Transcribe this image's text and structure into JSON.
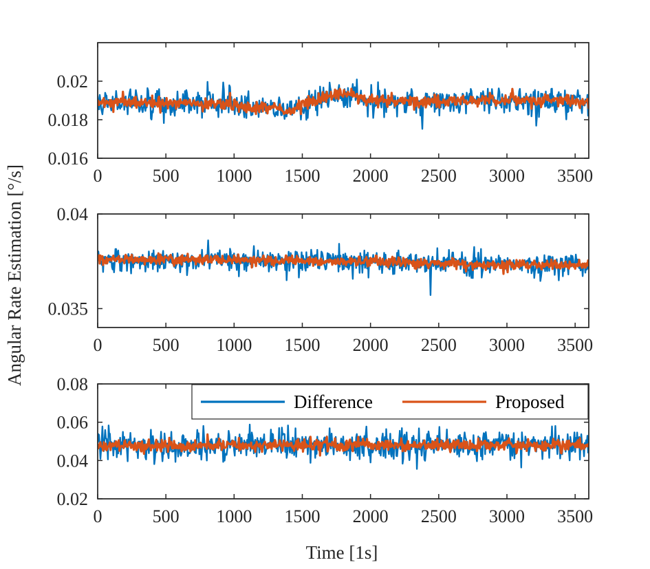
{
  "chart_data": [
    {
      "type": "line",
      "panel": "top",
      "xlim": [
        0,
        3600
      ],
      "ylim": [
        0.016,
        0.022
      ],
      "xticks": [
        "0",
        "500",
        "1000",
        "1500",
        "2000",
        "2500",
        "3000",
        "3500"
      ],
      "yticks": [
        "0.016",
        "0.018",
        "0.02"
      ],
      "series": [
        {
          "name": "Difference",
          "color": "#0072BD",
          "noise_amplitude": 0.0007,
          "trend": [
            [
              0,
              0.0189
            ],
            [
              300,
              0.0189
            ],
            [
              600,
              0.01885
            ],
            [
              1000,
              0.0188
            ],
            [
              1300,
              0.0186
            ],
            [
              1400,
              0.0184
            ],
            [
              1500,
              0.0188
            ],
            [
              1650,
              0.0191
            ],
            [
              1800,
              0.0194
            ],
            [
              2000,
              0.019
            ],
            [
              2500,
              0.0189
            ],
            [
              3000,
              0.019
            ],
            [
              3300,
              0.019
            ],
            [
              3600,
              0.0189
            ]
          ]
        },
        {
          "name": "Proposed",
          "color": "#D95319",
          "noise_amplitude": 0.0003,
          "trend": [
            [
              0,
              0.0189
            ],
            [
              300,
              0.0189
            ],
            [
              600,
              0.01885
            ],
            [
              1000,
              0.0188
            ],
            [
              1300,
              0.0186
            ],
            [
              1400,
              0.0184
            ],
            [
              1500,
              0.0188
            ],
            [
              1650,
              0.0191
            ],
            [
              1800,
              0.0194
            ],
            [
              2000,
              0.019
            ],
            [
              2500,
              0.0189
            ],
            [
              3000,
              0.019
            ],
            [
              3300,
              0.019
            ],
            [
              3600,
              0.0189
            ]
          ]
        }
      ]
    },
    {
      "type": "line",
      "panel": "middle",
      "xlim": [
        0,
        3600
      ],
      "ylim": [
        0.034,
        0.04
      ],
      "xticks": [
        "0",
        "500",
        "1000",
        "1500",
        "2000",
        "2500",
        "3000",
        "3500"
      ],
      "yticks": [
        "0.035",
        "0.04"
      ],
      "series": [
        {
          "name": "Difference",
          "color": "#0072BD",
          "noise_amplitude": 0.0006,
          "trend": [
            [
              0,
              0.0376
            ],
            [
              600,
              0.0376
            ],
            [
              1200,
              0.03755
            ],
            [
              1800,
              0.0375
            ],
            [
              2400,
              0.0374
            ],
            [
              3000,
              0.0373
            ],
            [
              3600,
              0.0373
            ]
          ]
        },
        {
          "name": "Proposed",
          "color": "#D95319",
          "noise_amplitude": 0.00025,
          "trend": [
            [
              0,
              0.0376
            ],
            [
              600,
              0.0376
            ],
            [
              1200,
              0.03755
            ],
            [
              1800,
              0.0375
            ],
            [
              2400,
              0.0374
            ],
            [
              3000,
              0.0373
            ],
            [
              3600,
              0.0373
            ]
          ]
        }
      ]
    },
    {
      "type": "line",
      "panel": "bottom",
      "xlim": [
        0,
        3600
      ],
      "ylim": [
        0.02,
        0.08
      ],
      "xticks": [
        "0",
        "500",
        "1000",
        "1500",
        "2000",
        "2500",
        "3000",
        "3500"
      ],
      "yticks": [
        "0.02",
        "0.04",
        "0.06",
        "0.08"
      ],
      "series": [
        {
          "name": "Difference",
          "color": "#0072BD",
          "noise_amplitude": 0.0075,
          "trend": [
            [
              0,
              0.048
            ],
            [
              1800,
              0.048
            ],
            [
              3600,
              0.048
            ]
          ]
        },
        {
          "name": "Proposed",
          "color": "#D95319",
          "noise_amplitude": 0.003,
          "trend": [
            [
              0,
              0.048
            ],
            [
              1800,
              0.048
            ],
            [
              3600,
              0.048
            ]
          ]
        }
      ]
    }
  ],
  "ylabel": "Angular Rate Estimation [°/s]",
  "xlabel": "Time [1s]",
  "legend": {
    "placement": "top-right of bottom panel",
    "entries": [
      {
        "label": "Difference",
        "color": "#0072BD"
      },
      {
        "label": "Proposed",
        "color": "#D95319"
      }
    ]
  }
}
